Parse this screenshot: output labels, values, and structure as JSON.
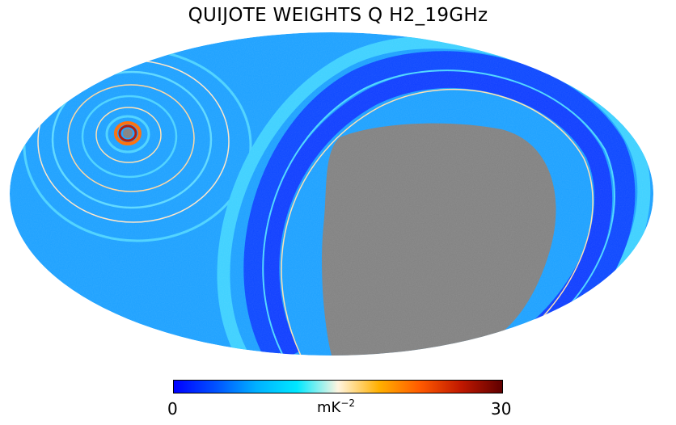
{
  "title": "QUIJOTE WEIGHTS Q H2_19GHz",
  "colorbar": {
    "min_label": "0",
    "max_label": "30",
    "unit_base": "mK",
    "unit_exp": "−2",
    "colormap_stops": [
      "#0000ff",
      "#0050ff",
      "#00b0ff",
      "#00e8ff",
      "#fff5e0",
      "#ffb000",
      "#ff5a00",
      "#c01800",
      "#600000"
    ]
  },
  "map": {
    "projection": "mollweide",
    "masked_color": "#808080",
    "background_color": "#1aa0ff"
  }
}
